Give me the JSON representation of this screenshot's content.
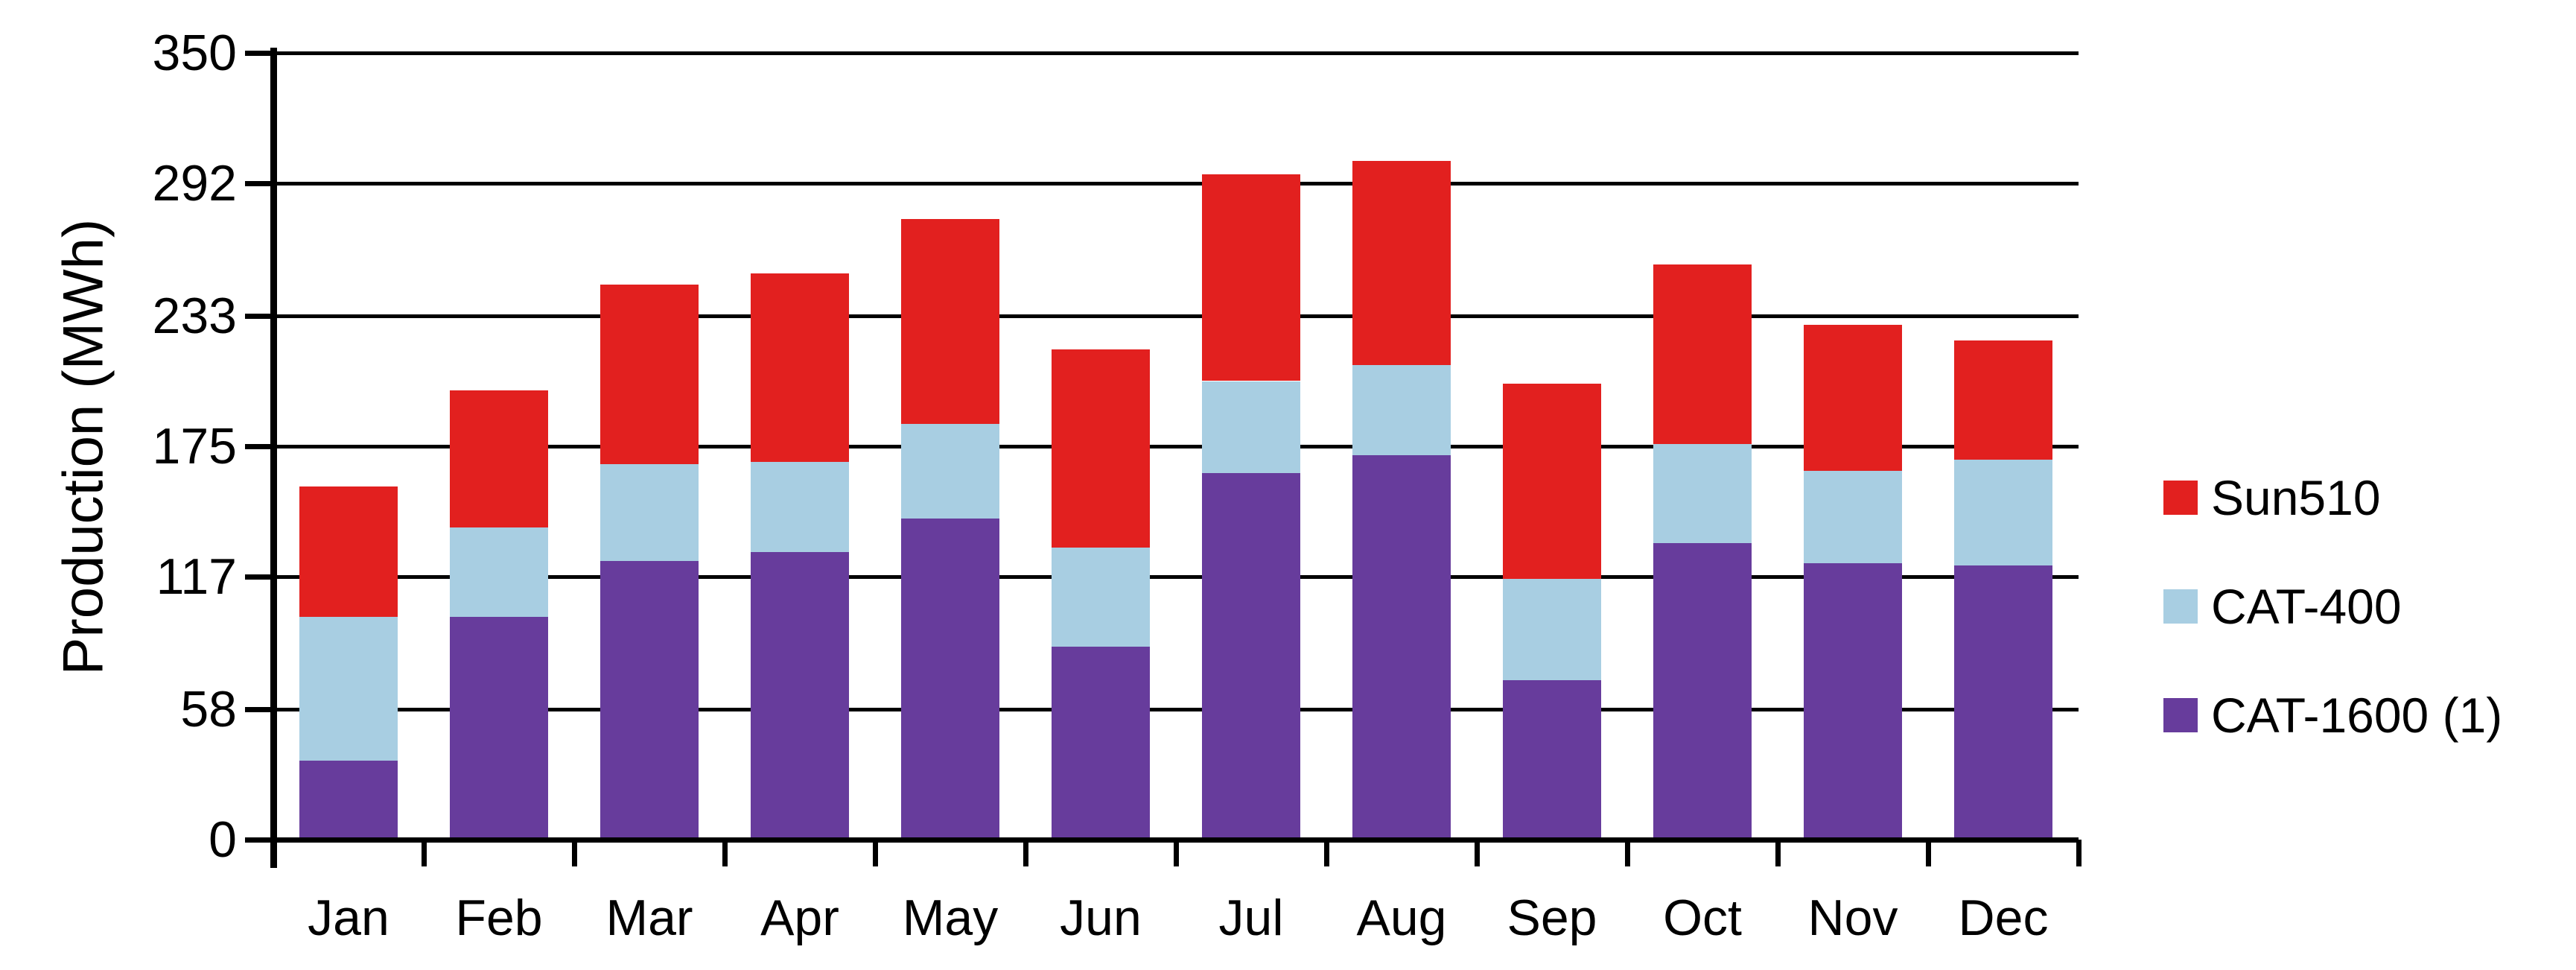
{
  "chart_data": {
    "type": "bar",
    "stacked": true,
    "title": "",
    "ylabel": "Production (MWh)",
    "xlabel": "",
    "ylim": [
      0,
      350
    ],
    "yticks": [
      0,
      58,
      117,
      175,
      233,
      292,
      350
    ],
    "grid": true,
    "categories": [
      "Jan",
      "Feb",
      "Mar",
      "Apr",
      "May",
      "Jun",
      "Jul",
      "Aug",
      "Sep",
      "Oct",
      "Nov",
      "Dec"
    ],
    "series": [
      {
        "name": "CAT-1600 (1)",
        "color": "#673c9c",
        "values": [
          35,
          99,
          124,
          128,
          143,
          86,
          163,
          171,
          71,
          132,
          123,
          122
        ]
      },
      {
        "name": "CAT-400",
        "color": "#a8cee2",
        "values": [
          64,
          40,
          43,
          40,
          42,
          44,
          41,
          40,
          45,
          44,
          41,
          47
        ]
      },
      {
        "name": "Sun510",
        "color": "#e2201f",
        "values": [
          58,
          61,
          80,
          84,
          91,
          88,
          92,
          91,
          87,
          80,
          65,
          53
        ]
      }
    ],
    "totals": [
      157,
      200,
      247,
      252,
      276,
      218,
      296,
      302,
      203,
      256,
      229,
      222
    ],
    "legend": {
      "position": "right",
      "order": [
        "Sun510",
        "CAT-400",
        "CAT-1600 (1)"
      ]
    },
    "axis_color": "#000000",
    "background": "#ffffff"
  }
}
